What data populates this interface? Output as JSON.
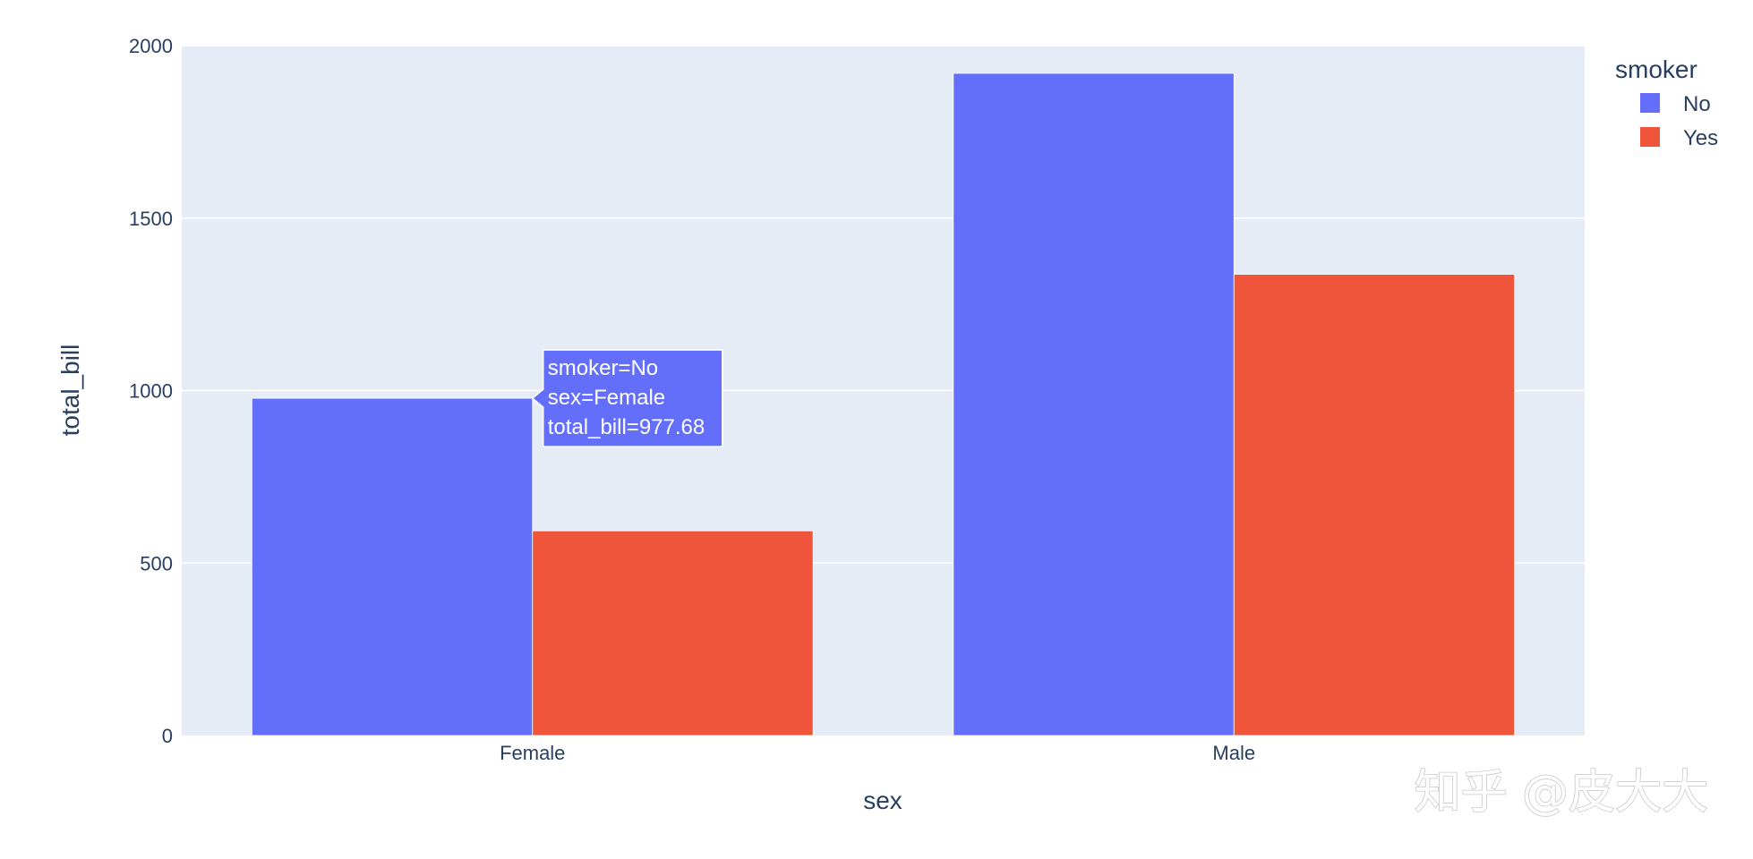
{
  "chart_data": {
    "type": "bar",
    "barmode": "group",
    "xlabel": "sex",
    "ylabel": "total_bill",
    "categories": [
      "Female",
      "Male"
    ],
    "series": [
      {
        "name": "No",
        "values": [
          977.68,
          1919.75
        ]
      },
      {
        "name": "Yes",
        "values": [
          593.27,
          1337.07
        ]
      }
    ],
    "ylim": [
      0,
      2000
    ],
    "yticks": [
      0,
      500,
      1000,
      1500,
      2000
    ],
    "grid": true,
    "legend": {
      "title": "smoker",
      "placement": "top-right"
    },
    "colors": {
      "No": "#636efa",
      "Yes": "#ef553b",
      "plot_bg": "#e5ecf6"
    },
    "hover": {
      "series": "No",
      "category": "Female",
      "lines": [
        "smoker=No",
        "sex=Female",
        "total_bill=977.68"
      ]
    }
  },
  "watermark": "知乎 @皮大大"
}
